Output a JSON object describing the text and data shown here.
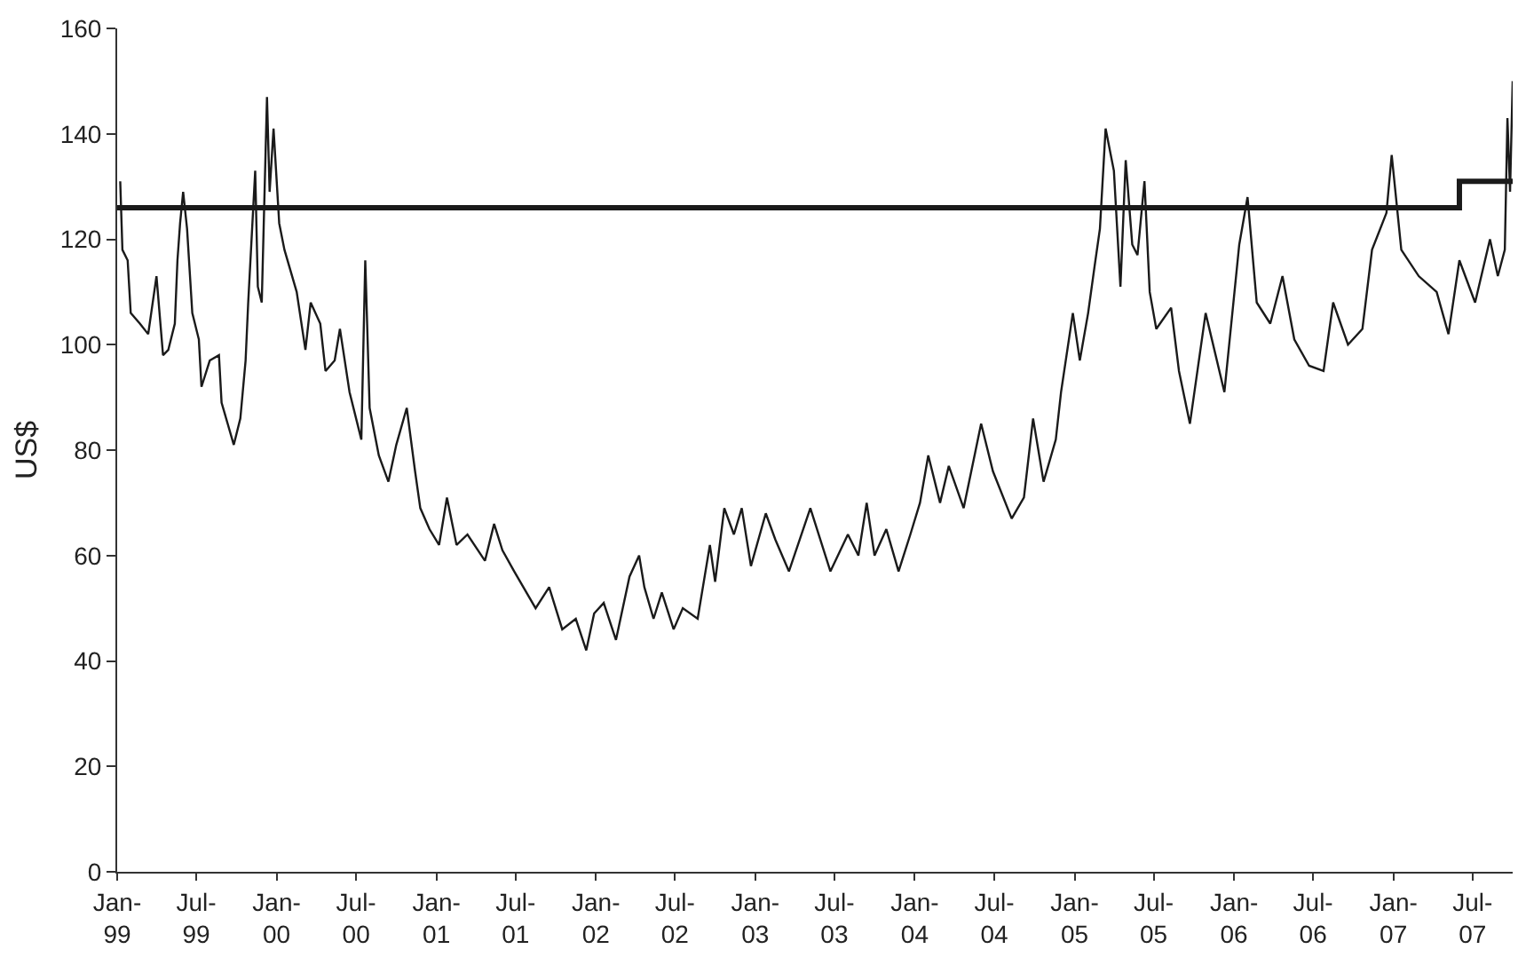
{
  "chart_data": {
    "type": "line",
    "ylabel": "US$",
    "xlim": [
      "1999-01-01",
      "2007-10-01"
    ],
    "xticks": [
      {
        "value": "1999-01-01",
        "label": "Jan-\n99"
      },
      {
        "value": "1999-07-01",
        "label": "Jul-\n99"
      },
      {
        "value": "2000-01-01",
        "label": "Jan-\n00"
      },
      {
        "value": "2000-07-01",
        "label": "Jul-\n00"
      },
      {
        "value": "2001-01-01",
        "label": "Jan-\n01"
      },
      {
        "value": "2001-07-01",
        "label": "Jul-\n01"
      },
      {
        "value": "2002-01-01",
        "label": "Jan-\n02"
      },
      {
        "value": "2002-07-01",
        "label": "Jul-\n02"
      },
      {
        "value": "2003-01-01",
        "label": "Jan-\n03"
      },
      {
        "value": "2003-07-01",
        "label": "Jul-\n03"
      },
      {
        "value": "2004-01-01",
        "label": "Jan-\n04"
      },
      {
        "value": "2004-07-01",
        "label": "Jul-\n04"
      },
      {
        "value": "2005-01-01",
        "label": "Jan-\n05"
      },
      {
        "value": "2005-07-01",
        "label": "Jul-\n05"
      },
      {
        "value": "2006-01-01",
        "label": "Jan-\n06"
      },
      {
        "value": "2006-07-01",
        "label": "Jul-\n06"
      },
      {
        "value": "2007-01-01",
        "label": "Jan-\n07"
      },
      {
        "value": "2007-07-01",
        "label": "Jul-\n07"
      }
    ],
    "ylim": [
      0,
      160
    ],
    "yticks": [
      0,
      20,
      40,
      60,
      80,
      100,
      120,
      140,
      160
    ],
    "grid": false,
    "series": [
      {
        "type": "line",
        "color": "#1a1a1a",
        "x": [
          "1999-01-08",
          "1999-01-13",
          "1999-01-25",
          "1999-02-01",
          "1999-02-22",
          "1999-03-13",
          "1999-04-01",
          "1999-04-16",
          "1999-04-28",
          "1999-05-13",
          "1999-05-19",
          "1999-05-25",
          "1999-06-01",
          "1999-06-10",
          "1999-06-22",
          "1999-07-07",
          "1999-07-13",
          "1999-08-01",
          "1999-08-22",
          "1999-08-28",
          "1999-09-25",
          "1999-10-10",
          "1999-10-22",
          "1999-10-28",
          "1999-11-13",
          "1999-11-19",
          "1999-11-28",
          "1999-12-10",
          "1999-12-16",
          "1999-12-25",
          "2000-01-07",
          "2000-01-19",
          "2000-02-16",
          "2000-03-07",
          "2000-03-19",
          "2000-04-10",
          "2000-04-22",
          "2000-05-13",
          "2000-05-25",
          "2000-06-16",
          "2000-07-13",
          "2000-07-22",
          "2000-08-01",
          "2000-08-22",
          "2000-09-13",
          "2000-10-01",
          "2000-10-25",
          "2000-11-13",
          "2000-11-25",
          "2000-12-16",
          "2001-01-07",
          "2001-01-25",
          "2001-02-16",
          "2001-03-13",
          "2001-04-22",
          "2001-05-13",
          "2001-06-01",
          "2001-06-28",
          "2001-08-16",
          "2001-09-16",
          "2001-10-16",
          "2001-11-16",
          "2001-12-10",
          "2001-12-28",
          "2002-01-19",
          "2002-02-16",
          "2002-03-19",
          "2002-04-10",
          "2002-04-22",
          "2002-05-13",
          "2002-06-01",
          "2002-06-28",
          "2002-07-19",
          "2002-08-22",
          "2002-09-19",
          "2002-10-01",
          "2002-10-22",
          "2002-11-13",
          "2002-12-01",
          "2002-12-22",
          "2003-01-25",
          "2003-02-16",
          "2003-03-19",
          "2003-05-07",
          "2003-06-22",
          "2003-08-01",
          "2003-08-25",
          "2003-09-13",
          "2003-10-01",
          "2003-10-28",
          "2003-11-25",
          "2003-12-22",
          "2004-01-13",
          "2004-02-01",
          "2004-02-28",
          "2004-03-19",
          "2004-04-22",
          "2004-06-01",
          "2004-06-28",
          "2004-08-10",
          "2004-09-07",
          "2004-09-28",
          "2004-10-22",
          "2004-11-19",
          "2004-12-01",
          "2004-12-28",
          "2005-01-13",
          "2005-02-01",
          "2005-02-16",
          "2005-02-28",
          "2005-03-13",
          "2005-04-01",
          "2005-04-16",
          "2005-04-28",
          "2005-05-13",
          "2005-05-25",
          "2005-06-10",
          "2005-06-22",
          "2005-07-07",
          "2005-08-10",
          "2005-08-28",
          "2005-09-22",
          "2005-10-28",
          "2005-12-10",
          "2006-01-13",
          "2006-02-01",
          "2006-02-22",
          "2006-03-25",
          "2006-04-22",
          "2006-05-19",
          "2006-06-22",
          "2006-07-25",
          "2006-08-16",
          "2006-09-19",
          "2006-10-22",
          "2006-11-13",
          "2006-12-16",
          "2006-12-28",
          "2007-01-19",
          "2007-02-28",
          "2007-04-10",
          "2007-05-07",
          "2007-06-01",
          "2007-07-07",
          "2007-08-10",
          "2007-08-28",
          "2007-09-13",
          "2007-09-19",
          "2007-09-25",
          "2007-10-01"
        ],
        "values": [
          131,
          118,
          116,
          106,
          104,
          102,
          113,
          98,
          99,
          104,
          116,
          123,
          129,
          122,
          106,
          101,
          92,
          97,
          98,
          89,
          81,
          86,
          97,
          108,
          133,
          111,
          108,
          147,
          129,
          141,
          123,
          118,
          110,
          99,
          108,
          104,
          95,
          97,
          103,
          91,
          82,
          116,
          88,
          79,
          74,
          81,
          88,
          76,
          69,
          65,
          62,
          71,
          62,
          64,
          59,
          66,
          61,
          57,
          50,
          54,
          46,
          48,
          42,
          49,
          51,
          44,
          56,
          60,
          54,
          48,
          53,
          46,
          50,
          48,
          62,
          55,
          69,
          64,
          69,
          58,
          68,
          63,
          57,
          69,
          57,
          64,
          60,
          70,
          60,
          65,
          57,
          64,
          70,
          79,
          70,
          77,
          69,
          85,
          76,
          67,
          71,
          86,
          74,
          82,
          91,
          106,
          97,
          106,
          115,
          122,
          141,
          133,
          111,
          135,
          119,
          117,
          131,
          110,
          103,
          107,
          95,
          85,
          106,
          91,
          119,
          128,
          108,
          104,
          113,
          101,
          96,
          95,
          108,
          100,
          103,
          118,
          125,
          136,
          118,
          113,
          110,
          102,
          116,
          108,
          120,
          113,
          118,
          143,
          129,
          150
        ]
      },
      {
        "type": "step",
        "color": "#1a1a1a",
        "x": [
          "1999-01-01",
          "2007-06-01",
          "2007-10-01"
        ],
        "values": [
          126,
          131,
          131
        ]
      }
    ]
  }
}
